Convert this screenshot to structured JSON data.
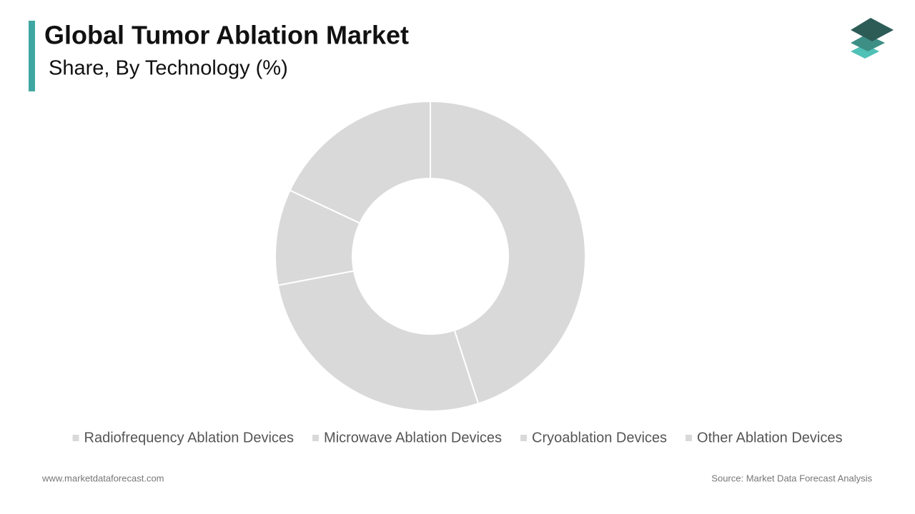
{
  "chart_data": {
    "type": "donut",
    "title": "Global Tumor Ablation Market",
    "subtitle": "Share, By Technology (%)",
    "categories": [
      "Radiofrequency Ablation Devices",
      "Microwave Ablation Devices",
      "Cryoablation Devices",
      "Other Ablation Devices"
    ],
    "values": [
      45,
      27,
      10,
      18
    ],
    "colors": [
      "#d9d9d9",
      "#d9d9d9",
      "#d9d9d9",
      "#d9d9d9"
    ],
    "legend": "bottom"
  },
  "footer": {
    "website": "www.marketdataforecast.com",
    "source": "Source: Market Data Forecast Analysis"
  }
}
